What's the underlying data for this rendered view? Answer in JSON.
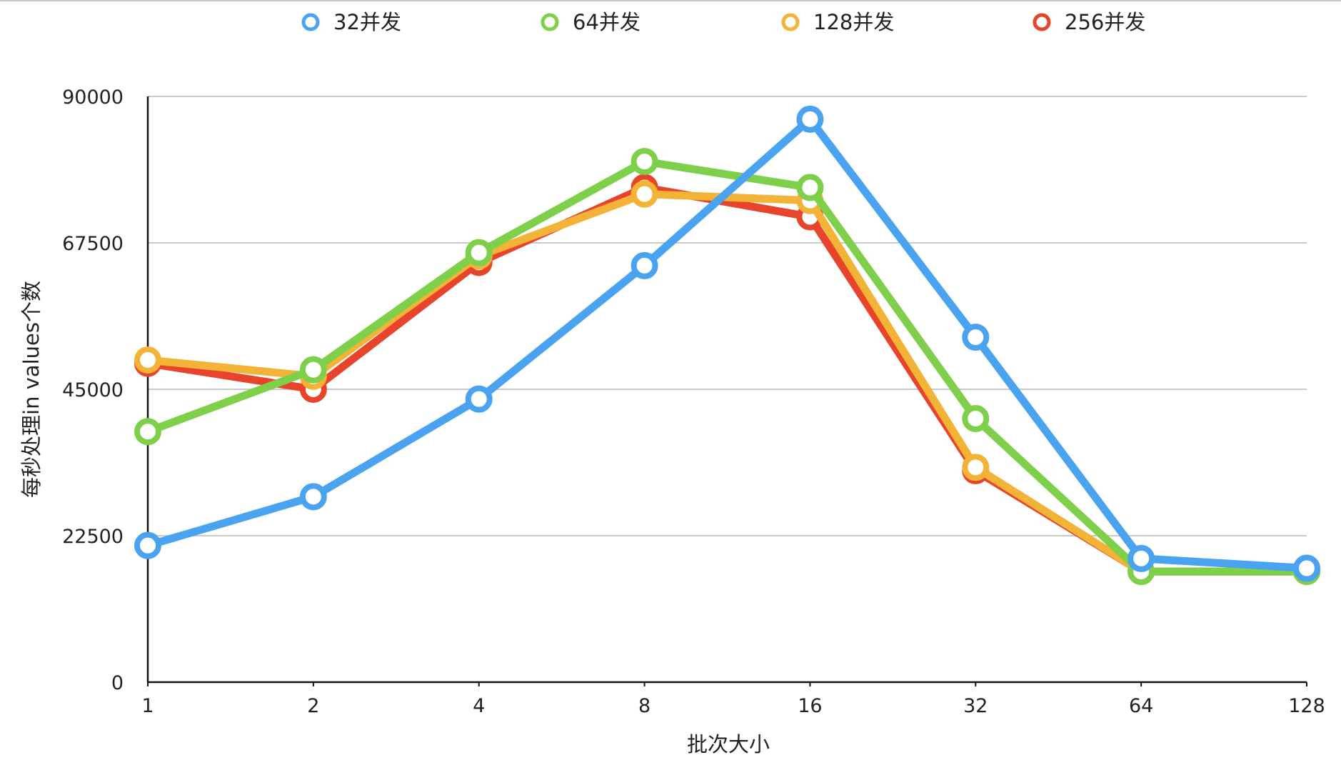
{
  "chart_data": {
    "type": "line",
    "title": "",
    "xlabel": "批次大小",
    "ylabel": "每秒处理in values个数",
    "x_categories": [
      "1",
      "2",
      "4",
      "8",
      "16",
      "32",
      "64",
      "128"
    ],
    "y_ticks": [
      "0",
      "22500",
      "45000",
      "67500",
      "90000"
    ],
    "ylim": [
      0,
      90000
    ],
    "grid": true,
    "legend_position": "top",
    "series": [
      {
        "name": "32并发",
        "color": "#4aa3f0",
        "values": [
          21000,
          28500,
          43500,
          64000,
          86500,
          53000,
          19000,
          17500
        ]
      },
      {
        "name": "64并发",
        "color": "#7ed04b",
        "values": [
          38500,
          48000,
          66000,
          80000,
          76000,
          40500,
          17000,
          17000
        ]
      },
      {
        "name": "128并发",
        "color": "#f2b336",
        "values": [
          49500,
          47000,
          65500,
          75000,
          74000,
          33000,
          17000,
          17000
        ]
      },
      {
        "name": "256并发",
        "color": "#e8442b",
        "values": [
          49000,
          45000,
          64500,
          76000,
          71500,
          32500,
          17000,
          17000
        ]
      }
    ]
  }
}
